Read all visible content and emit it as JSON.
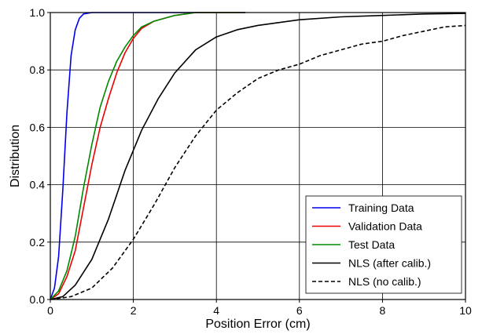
{
  "chart_data": {
    "type": "line",
    "xlabel": "Position Error (cm)",
    "ylabel": "Distribution",
    "xlim": [
      0,
      10
    ],
    "ylim": [
      0,
      1
    ],
    "x_ticks": [
      0,
      2,
      4,
      6,
      8,
      10
    ],
    "y_ticks": [
      0.0,
      0.2,
      0.4,
      0.6,
      0.8,
      1.0
    ],
    "x_tick_labels": [
      "0",
      "2",
      "4",
      "6",
      "8",
      "10"
    ],
    "y_tick_labels": [
      "0.0",
      "0.2",
      "0.4",
      "0.6",
      "0.8",
      "1.0"
    ],
    "grid": true,
    "legend_position": "lower-right",
    "series": [
      {
        "name": "Training Data",
        "color": "#0000ee",
        "dash": "solid",
        "points": [
          [
            0,
            0
          ],
          [
            0.1,
            0.04
          ],
          [
            0.2,
            0.15
          ],
          [
            0.3,
            0.38
          ],
          [
            0.4,
            0.65
          ],
          [
            0.5,
            0.85
          ],
          [
            0.6,
            0.94
          ],
          [
            0.7,
            0.98
          ],
          [
            0.8,
            0.995
          ],
          [
            1.0,
            1.0
          ],
          [
            4.7,
            1.0
          ]
        ]
      },
      {
        "name": "Validation Data",
        "color": "#ee0000",
        "dash": "solid",
        "points": [
          [
            0,
            0
          ],
          [
            0.2,
            0.02
          ],
          [
            0.4,
            0.08
          ],
          [
            0.6,
            0.17
          ],
          [
            0.8,
            0.32
          ],
          [
            1.0,
            0.47
          ],
          [
            1.2,
            0.6
          ],
          [
            1.4,
            0.7
          ],
          [
            1.6,
            0.79
          ],
          [
            1.8,
            0.86
          ],
          [
            2.0,
            0.91
          ],
          [
            2.2,
            0.945
          ],
          [
            2.5,
            0.97
          ],
          [
            3.0,
            0.99
          ],
          [
            3.5,
            1.0
          ],
          [
            4.7,
            1.0
          ]
        ]
      },
      {
        "name": "Test Data",
        "color": "#008800",
        "dash": "solid",
        "points": [
          [
            0,
            0
          ],
          [
            0.2,
            0.03
          ],
          [
            0.4,
            0.1
          ],
          [
            0.6,
            0.22
          ],
          [
            0.8,
            0.39
          ],
          [
            1.0,
            0.54
          ],
          [
            1.2,
            0.67
          ],
          [
            1.4,
            0.76
          ],
          [
            1.6,
            0.83
          ],
          [
            1.8,
            0.88
          ],
          [
            2.0,
            0.92
          ],
          [
            2.2,
            0.95
          ],
          [
            2.5,
            0.97
          ],
          [
            3.0,
            0.99
          ],
          [
            3.5,
            1.0
          ],
          [
            4.7,
            1.0
          ]
        ]
      },
      {
        "name": "NLS (after calib.)",
        "color": "#000000",
        "dash": "solid",
        "points": [
          [
            0,
            0
          ],
          [
            0.3,
            0.01
          ],
          [
            0.6,
            0.05
          ],
          [
            1.0,
            0.14
          ],
          [
            1.4,
            0.28
          ],
          [
            1.8,
            0.45
          ],
          [
            2.2,
            0.59
          ],
          [
            2.6,
            0.7
          ],
          [
            3.0,
            0.79
          ],
          [
            3.5,
            0.87
          ],
          [
            4.0,
            0.915
          ],
          [
            4.5,
            0.94
          ],
          [
            5.0,
            0.955
          ],
          [
            6.0,
            0.975
          ],
          [
            7.0,
            0.985
          ],
          [
            8.0,
            0.99
          ],
          [
            9.0,
            0.995
          ],
          [
            10.0,
            0.997
          ]
        ]
      },
      {
        "name": "NLS (no calib.)",
        "color": "#000000",
        "dash": "dashed",
        "points": [
          [
            0,
            0
          ],
          [
            0.5,
            0.01
          ],
          [
            1.0,
            0.04
          ],
          [
            1.5,
            0.11
          ],
          [
            2.0,
            0.21
          ],
          [
            2.5,
            0.33
          ],
          [
            3.0,
            0.46
          ],
          [
            3.5,
            0.57
          ],
          [
            4.0,
            0.66
          ],
          [
            4.5,
            0.72
          ],
          [
            5.0,
            0.77
          ],
          [
            5.5,
            0.8
          ],
          [
            6.0,
            0.82
          ],
          [
            6.5,
            0.85
          ],
          [
            7.0,
            0.87
          ],
          [
            7.5,
            0.89
          ],
          [
            8.0,
            0.9
          ],
          [
            8.5,
            0.92
          ],
          [
            9.0,
            0.935
          ],
          [
            9.5,
            0.95
          ],
          [
            10.0,
            0.955
          ]
        ]
      }
    ]
  }
}
